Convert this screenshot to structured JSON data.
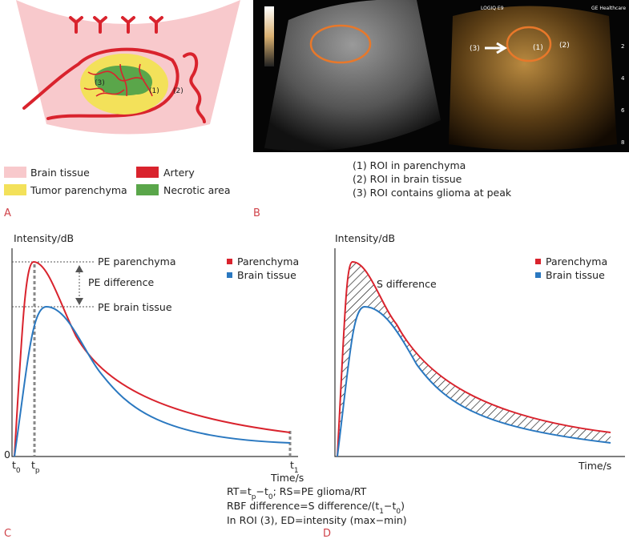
{
  "panel_a": {
    "letter": "A",
    "region_labels": [
      "(3)",
      "(1)",
      "(2)"
    ],
    "legend": [
      "Brain tissue",
      "Tumor parenchyma",
      "Artery",
      "Necrotic area"
    ]
  },
  "panel_b": {
    "letter": "B",
    "device_label": "GE Healthcare",
    "model_label": "LOGIQ E9",
    "image_labels": [
      "(3)",
      "(1)",
      "(2)"
    ],
    "depth_labels": [
      "2",
      "4",
      "6",
      "8"
    ],
    "captions": [
      "(1) ROI in parenchyma",
      "(2) ROI in brain tissue",
      "(3) ROI contains glioma at peak"
    ]
  },
  "panel_c": {
    "letter": "C",
    "y_label": "Intensity/dB",
    "x_label": "Time/s",
    "origin_label": "0",
    "annotations": [
      "PE parenchyma",
      "PE difference",
      "PE brain tissue"
    ],
    "legend": [
      "Parenchyma",
      "Brain tissue"
    ],
    "time_marks": [
      [
        {
          "text": "t"
        },
        {
          "text": "0",
          "sub": true
        }
      ],
      [
        {
          "text": "t"
        },
        {
          "text": "p",
          "sub": true
        }
      ],
      [
        {
          "text": "t"
        },
        {
          "text": "1",
          "sub": true
        }
      ]
    ]
  },
  "panel_d": {
    "letter": "D",
    "y_label": "Intensity/dB",
    "x_label": "Time/s",
    "annotation": "S difference",
    "legend": [
      "Parenchyma",
      "Brain tissue"
    ]
  },
  "formulas": [
    [
      {
        "text": "RT=t"
      },
      {
        "text": "p",
        "sub": true
      },
      {
        "text": "−t"
      },
      {
        "text": "0",
        "sub": true
      },
      {
        "text": "; RS=PE glioma/RT"
      }
    ],
    [
      {
        "text": "RBF difference=S difference/(t"
      },
      {
        "text": "1",
        "sub": true
      },
      {
        "text": "−t"
      },
      {
        "text": "0",
        "sub": true
      },
      {
        "text": ")"
      }
    ],
    [
      {
        "text": "In ROI (3), ED=intensity (max−min)"
      }
    ]
  ]
}
